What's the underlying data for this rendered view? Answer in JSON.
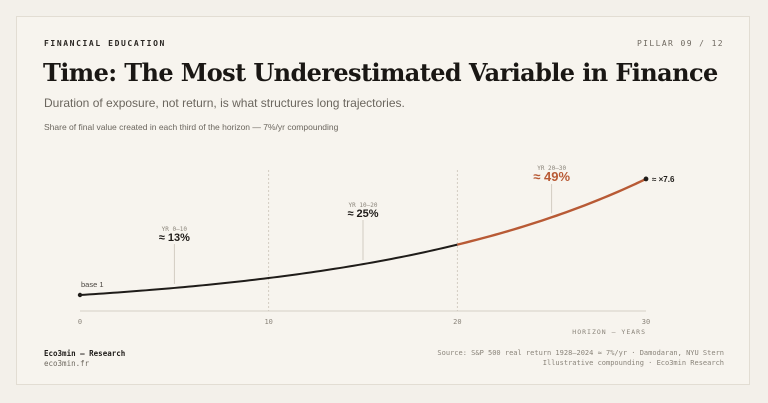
{
  "header": {
    "eyebrow": "FINANCIAL EDUCATION",
    "pillar": "PILLAR 09 / 12",
    "title": "Time: The Most Underestimated Variable in Finance",
    "subtitle": "Duration of exposure, not return, is what structures long trajectories.",
    "chart_caption": "Share of final value created in each third of the horizon — 7%/yr compounding"
  },
  "footer": {
    "brand": "Eco3min — Research",
    "site": "eco3min.fr",
    "source": "Source: S&P 500 real return 1928–2024 ≈ 7%/yr · Damodaran, NYU Stern",
    "note": "Illustrative compounding · Eco3min Research"
  },
  "colors": {
    "ink": "#1f1c19",
    "accent": "#b85a35",
    "muted": "#8a847a",
    "grid": "#c9c3b8"
  },
  "chart_data": {
    "type": "line",
    "xlabel": "HORIZON — YEARS",
    "xlim": [
      0,
      30
    ],
    "x_ticks": [
      0,
      10,
      20,
      30
    ],
    "growth_rate": 0.07,
    "start_label": "base 1",
    "end_label": "≈ ×7.6",
    "series": [
      {
        "x": [
          0,
          2,
          4,
          6,
          8,
          10,
          12,
          14,
          16,
          18,
          20,
          22,
          24,
          26,
          28,
          30
        ],
        "values": [
          1.0,
          1.14,
          1.31,
          1.5,
          1.72,
          1.97,
          2.25,
          2.58,
          2.95,
          3.38,
          3.87,
          4.43,
          5.07,
          5.81,
          6.65,
          7.61
        ]
      }
    ],
    "highlight_from_x": 20,
    "annotations": [
      {
        "range": "YR 0–10",
        "share": "≈ 13%",
        "x": 5,
        "accent": false
      },
      {
        "range": "YR 10–20",
        "share": "≈ 25%",
        "x": 15,
        "accent": false
      },
      {
        "range": "YR 20–30",
        "share": "≈ 49%",
        "x": 25,
        "accent": true
      }
    ]
  }
}
